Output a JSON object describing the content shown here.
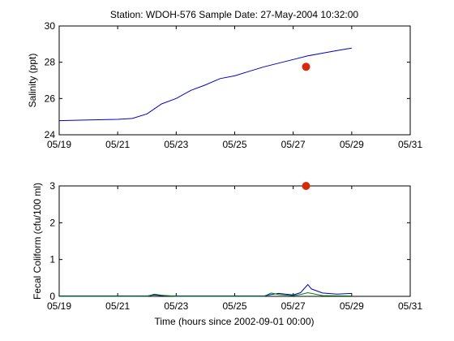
{
  "chart_data": [
    {
      "type": "line",
      "title": "Station: WDOH-576  Sample Date: 27-May-2004 10:32:00",
      "xlabel": "",
      "ylabel": "Salinity (ppt)",
      "xlim": [
        "05/19",
        "05/31"
      ],
      "ylim": [
        24,
        30
      ],
      "x_ticks": [
        "05/19",
        "05/21",
        "05/23",
        "05/25",
        "05/27",
        "05/29",
        "05/31"
      ],
      "y_ticks": [
        "24",
        "26",
        "28",
        "30"
      ],
      "grid": false,
      "colors": {
        "model": "#0000cc",
        "sample": "#d62a0a"
      },
      "series": [
        {
          "x": [
            "05/19",
            "05/20",
            "05/21",
            "05/21 12:00",
            "05/22",
            "05/22 12:00",
            "05/23",
            "05/23 12:00",
            "05/24",
            "05/24 12:00",
            "05/25",
            "05/25 12:00",
            "05/26",
            "05/26 12:00",
            "05/27",
            "05/27 12:00",
            "05/28",
            "05/28 12:00",
            "05/29"
          ],
          "values": [
            24.78,
            24.82,
            24.85,
            24.9,
            25.15,
            25.7,
            26.0,
            26.45,
            26.75,
            27.1,
            27.25,
            27.5,
            27.75,
            27.95,
            28.15,
            28.35,
            28.5,
            28.65,
            28.78
          ]
        }
      ],
      "points": [
        {
          "x": "05/27 10:32",
          "y": 27.75
        }
      ]
    },
    {
      "type": "line",
      "title": "",
      "xlabel": "Time (hours since 2002-09-01 00:00)",
      "ylabel": "Fecal Coliform (cfu/100 ml)",
      "xlim": [
        "05/19",
        "05/31"
      ],
      "ylim": [
        0,
        3
      ],
      "x_ticks": [
        "05/19",
        "05/21",
        "05/23",
        "05/25",
        "05/27",
        "05/29",
        "05/31"
      ],
      "y_ticks": [
        "0",
        "1",
        "2",
        "3"
      ],
      "grid": false,
      "colors": {
        "model": "#0000cc",
        "model_2": "#008000",
        "sample": "#d62a0a"
      },
      "series": [
        {
          "x": [
            "05/19",
            "05/22",
            "05/22 06:00",
            "05/22 12:00",
            "05/23",
            "05/26",
            "05/26 06:00",
            "05/26 12:00",
            "05/27",
            "05/27 06:00",
            "05/27 12:00",
            "05/27 15:00",
            "05/28",
            "05/28 12:00",
            "05/29"
          ],
          "values": [
            0.01,
            0.01,
            0.04,
            0.02,
            0.01,
            0.01,
            0.05,
            0.08,
            0.04,
            0.1,
            0.32,
            0.2,
            0.09,
            0.06,
            0.08
          ]
        },
        {
          "x": [
            "05/19",
            "05/22",
            "05/22 06:00",
            "05/22 12:00",
            "05/23",
            "05/26",
            "05/26 06:00",
            "05/26 12:00",
            "05/27",
            "05/27 06:00",
            "05/27 12:00",
            "05/28",
            "05/29"
          ],
          "values": [
            0.0,
            0.0,
            0.06,
            0.03,
            0.0,
            0.0,
            0.09,
            0.05,
            0.02,
            0.05,
            0.1,
            0.02,
            0.01
          ]
        }
      ],
      "points": [
        {
          "x": "05/27 10:32",
          "y": 3.0
        }
      ]
    }
  ]
}
